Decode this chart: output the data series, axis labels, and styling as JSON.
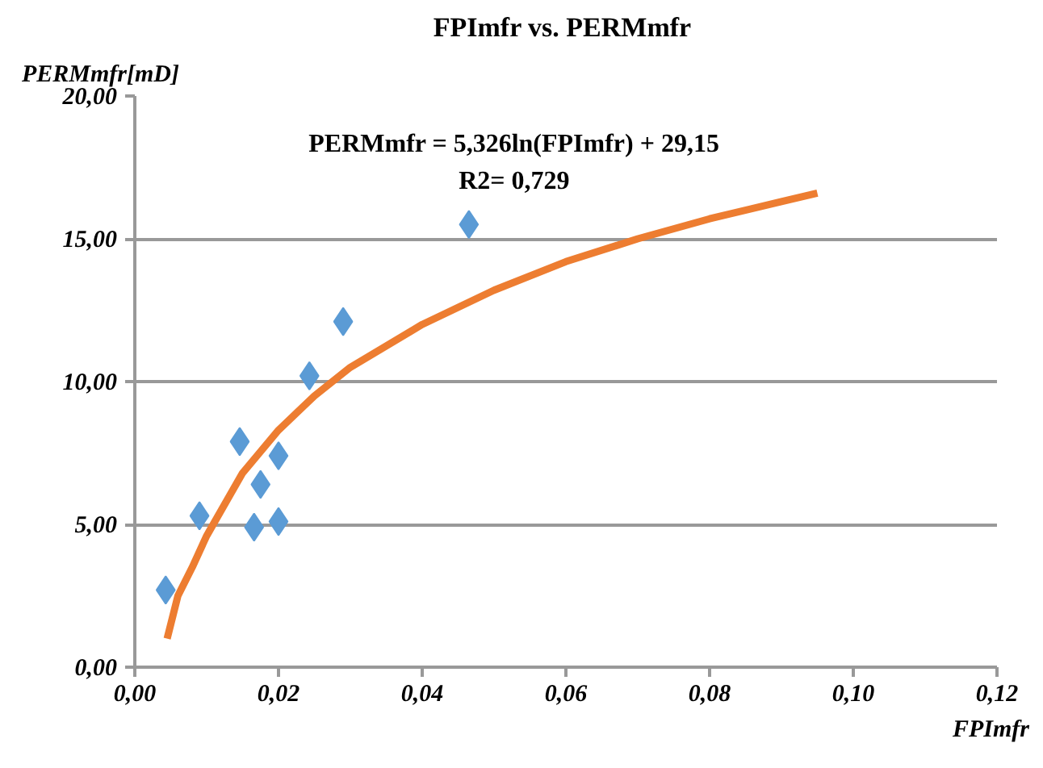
{
  "chart_data": {
    "type": "scatter",
    "title": "FPImfr  vs. PERMmfr",
    "xlabel": "FPImfr",
    "ylabel": "PERMmfr[mD]",
    "annotations": [
      "PERMmfr = 5,326ln(FPImfr) + 29,15",
      "R2= 0,729"
    ],
    "series": [
      {
        "color": "#5b9bd5",
        "marker": "diamond",
        "x": [
          0.0043,
          0.009,
          0.0146,
          0.0166,
          0.0175,
          0.02,
          0.02,
          0.0243,
          0.029,
          0.0465
        ],
        "values": [
          2.7,
          5.3,
          7.9,
          4.9,
          6.4,
          7.4,
          5.1,
          10.2,
          12.1,
          15.5
        ]
      },
      {
        "type": "line",
        "color": "#ed7d31",
        "marker": "none",
        "x": [
          0.0045,
          0.006,
          0.008,
          0.01,
          0.015,
          0.02,
          0.025,
          0.03,
          0.04,
          0.05,
          0.06,
          0.07,
          0.08,
          0.09,
          0.095
        ],
        "values": [
          1.0,
          2.5,
          3.5,
          4.6,
          6.8,
          8.3,
          9.5,
          10.5,
          12.0,
          13.2,
          14.2,
          15.0,
          15.7,
          16.3,
          16.6
        ]
      }
    ],
    "xlim": [
      0,
      0.12
    ],
    "xticks": [
      {
        "value": 0,
        "label": "0,00"
      },
      {
        "value": 0.02,
        "label": "0,02"
      },
      {
        "value": 0.04,
        "label": "0,04"
      },
      {
        "value": 0.06,
        "label": "0,06"
      },
      {
        "value": 0.08,
        "label": "0,08"
      },
      {
        "value": 0.1,
        "label": "0,10"
      },
      {
        "value": 0.12,
        "label": "0,12"
      }
    ],
    "ylim": [
      0,
      20
    ],
    "yticks": [
      {
        "value": 0,
        "label": "0,00"
      },
      {
        "value": 5,
        "label": "5,00"
      },
      {
        "value": 10,
        "label": "10,00"
      },
      {
        "value": 15,
        "label": "15,00"
      },
      {
        "value": 20,
        "label": "20,00"
      }
    ],
    "grid": "y"
  }
}
